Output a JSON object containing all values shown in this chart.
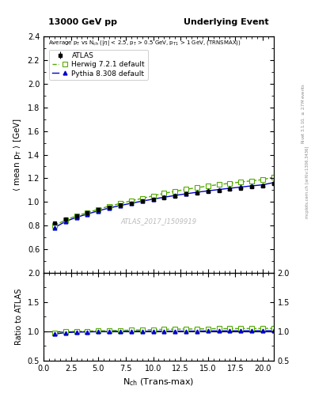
{
  "title_left": "13000 GeV pp",
  "title_right": "Underlying Event",
  "inner_title": "Average p$_{T}$ vs N$_{ch}$ (|$\\eta$| < 2.5, p$_{T}$ > 0.5 GeV, p$_{T1}$ > 1 GeV, (TRNSMAX))",
  "ylabel_main": "$\\langle$ mean p$_{T}$ $\\rangle$ [GeV]",
  "ylabel_ratio": "Ratio to ATLAS",
  "xlabel": "N$_{ch}$ (Trans-max)",
  "watermark": "ATLAS_2017_I1509919",
  "right_label": "mcplots.cern.ch [arXiv:1306.3436]",
  "rivet_label": "Rivet 3.1.10, $\\geq$ 2.7M events",
  "xlim": [
    0,
    21
  ],
  "ylim_main": [
    0.4,
    2.4
  ],
  "ylim_ratio": [
    0.5,
    2.0
  ],
  "yticks_main": [
    0.6,
    0.8,
    1.0,
    1.2,
    1.4,
    1.6,
    1.8,
    2.0,
    2.2,
    2.4
  ],
  "yticks_ratio": [
    0.5,
    1.0,
    1.5,
    2.0
  ],
  "atlas_x": [
    1,
    2,
    3,
    4,
    5,
    6,
    7,
    8,
    9,
    10,
    11,
    12,
    13,
    14,
    15,
    16,
    17,
    18,
    19,
    20,
    21
  ],
  "atlas_y": [
    0.822,
    0.855,
    0.884,
    0.907,
    0.932,
    0.953,
    0.972,
    0.99,
    1.007,
    1.023,
    1.038,
    1.052,
    1.066,
    1.078,
    1.088,
    1.098,
    1.108,
    1.117,
    1.126,
    1.134,
    1.153
  ],
  "atlas_yerr": [
    0.012,
    0.01,
    0.009,
    0.008,
    0.007,
    0.007,
    0.006,
    0.006,
    0.006,
    0.006,
    0.006,
    0.006,
    0.006,
    0.006,
    0.007,
    0.007,
    0.007,
    0.008,
    0.009,
    0.01,
    0.015
  ],
  "herwig_x": [
    1,
    2,
    3,
    4,
    5,
    6,
    7,
    8,
    9,
    10,
    11,
    12,
    13,
    14,
    15,
    16,
    17,
    18,
    19,
    20,
    21
  ],
  "herwig_y": [
    0.8,
    0.848,
    0.883,
    0.91,
    0.938,
    0.965,
    0.987,
    1.01,
    1.03,
    1.052,
    1.073,
    1.09,
    1.107,
    1.121,
    1.135,
    1.147,
    1.158,
    1.169,
    1.179,
    1.189,
    1.21
  ],
  "pythia_x": [
    1,
    2,
    3,
    4,
    5,
    6,
    7,
    8,
    9,
    10,
    11,
    12,
    13,
    14,
    15,
    16,
    17,
    18,
    19,
    20,
    21
  ],
  "pythia_y": [
    0.782,
    0.835,
    0.87,
    0.898,
    0.925,
    0.949,
    0.97,
    0.989,
    1.007,
    1.024,
    1.04,
    1.055,
    1.069,
    1.082,
    1.094,
    1.105,
    1.116,
    1.126,
    1.136,
    1.145,
    1.164
  ],
  "atlas_color": "#000000",
  "herwig_color": "#55aa00",
  "pythia_color": "#0000cc",
  "bg_color": "#ffffff"
}
